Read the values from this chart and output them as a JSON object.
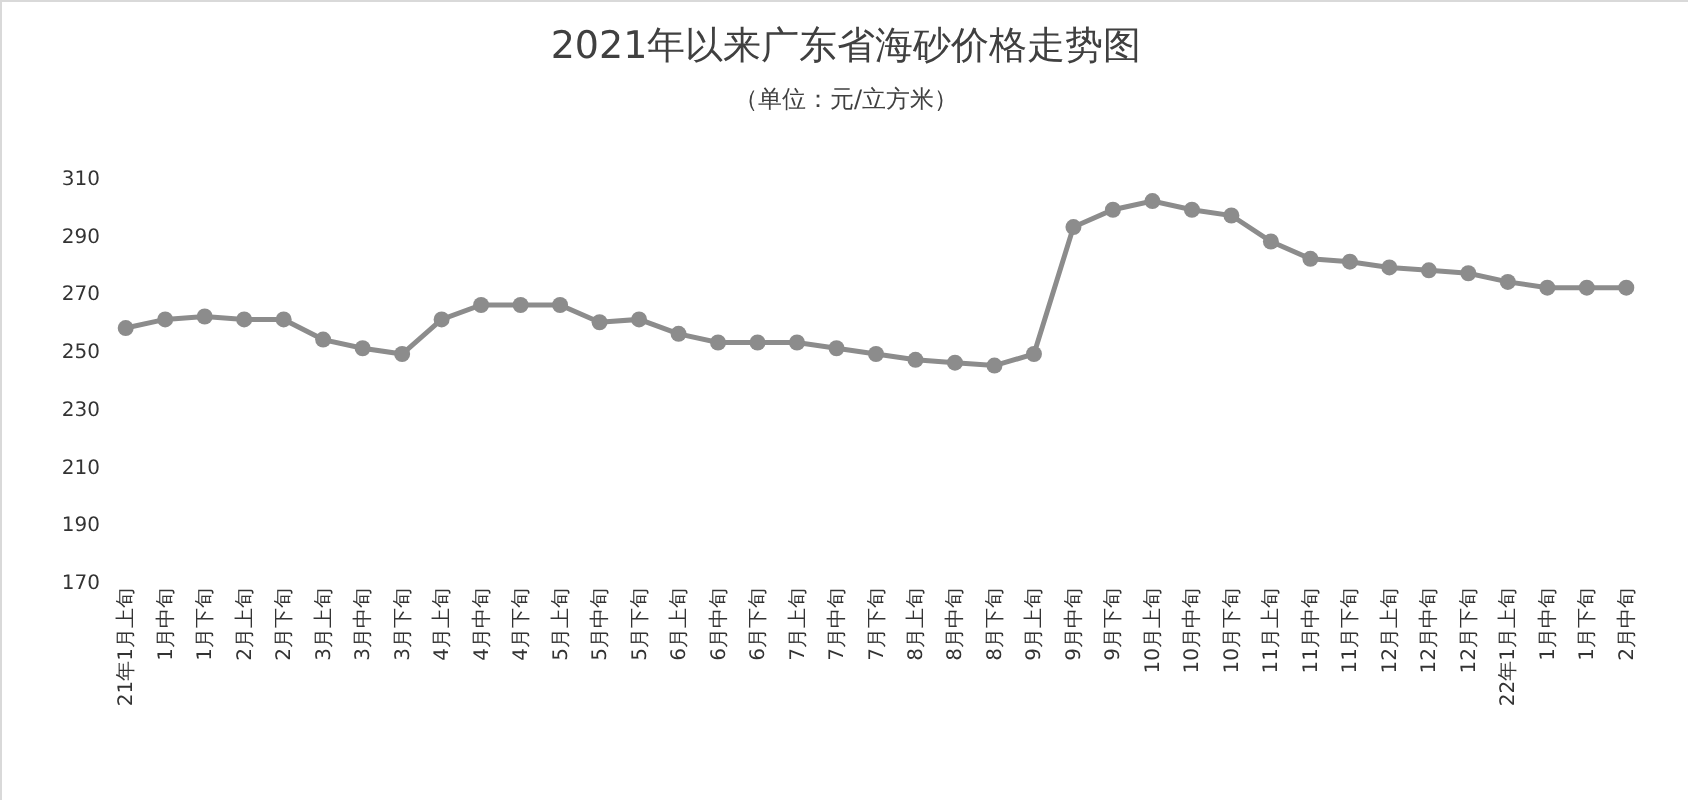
{
  "chart_data": {
    "type": "line",
    "title": "2021年以来广东省海砂价格走势图",
    "subtitle": "（单位：元/立方米）",
    "categories": [
      "21年1月上旬",
      "1月中旬",
      "1月下旬",
      "2月上旬",
      "2月下旬",
      "3月上旬",
      "3月中旬",
      "3月下旬",
      "4月上旬",
      "4月中旬",
      "4月下旬",
      "5月上旬",
      "5月中旬",
      "5月下旬",
      "6月上旬",
      "6月中旬",
      "6月下旬",
      "7月上旬",
      "7月中旬",
      "7月下旬",
      "8月上旬",
      "8月中旬",
      "8月下旬",
      "9月上旬",
      "9月中旬",
      "9月下旬",
      "10月上旬",
      "10月中旬",
      "10月下旬",
      "11月上旬",
      "11月中旬",
      "11月下旬",
      "12月上旬",
      "12月中旬",
      "12月下旬",
      "22年1月上旬",
      "1月中旬",
      "1月下旬",
      "2月中旬"
    ],
    "series": [
      {
        "color": "#8c8c8c",
        "values": [
          258,
          261,
          262,
          261,
          261,
          254,
          251,
          249,
          261,
          266,
          266,
          266,
          260,
          261,
          256,
          253,
          253,
          253,
          251,
          249,
          247,
          246,
          245,
          249,
          293,
          299,
          302,
          299,
          297,
          288,
          282,
          281,
          279,
          278,
          277,
          274,
          272,
          272,
          272
        ]
      }
    ],
    "ylim": [
      170,
      310
    ],
    "yticks": [
      170,
      190,
      210,
      230,
      250,
      270,
      290,
      310
    ],
    "grid": false,
    "marker": "circle",
    "line_style": "solid"
  }
}
